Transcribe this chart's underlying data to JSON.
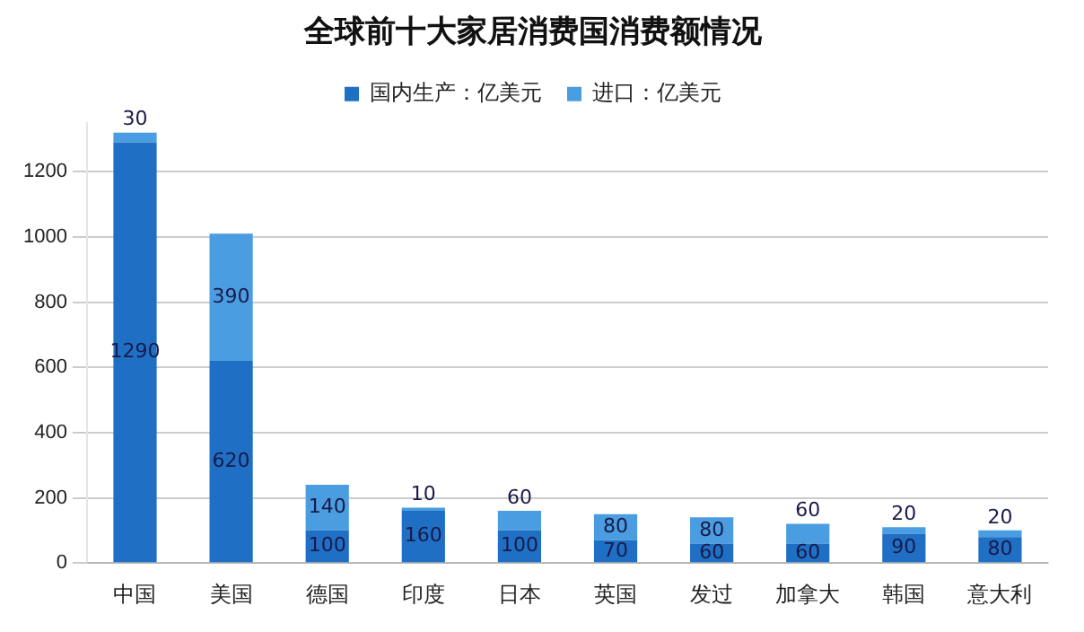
{
  "chart_data": {
    "type": "bar",
    "title": "全球前十大家居消费国消费额情况",
    "stacked": true,
    "data_labels": true,
    "grid": "y",
    "legend": "top",
    "categories": [
      "中国",
      "美国",
      "德国",
      "印度",
      "日本",
      "英国",
      "发过",
      "加拿大",
      "韩国",
      "意大利"
    ],
    "series": [
      {
        "name": "国内生产：亿美元",
        "color": "#1f6fc5",
        "values": [
          1290,
          620,
          100,
          160,
          100,
          70,
          60,
          60,
          90,
          80
        ]
      },
      {
        "name": "进口：亿美元",
        "color": "#4a9de0",
        "values": [
          30,
          390,
          140,
          10,
          60,
          80,
          80,
          60,
          20,
          20
        ]
      }
    ],
    "ylim": [
      0,
      1350
    ],
    "yticks": [
      0,
      200,
      400,
      600,
      800,
      1000,
      1200
    ]
  }
}
